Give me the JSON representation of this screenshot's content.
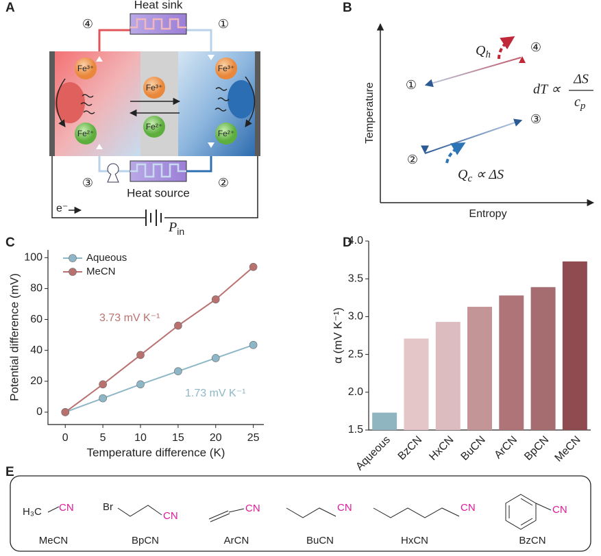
{
  "panel_labels": {
    "a": "A",
    "b": "B",
    "c": "C",
    "d": "D",
    "e": "E"
  },
  "panel_a": {
    "heat_sink": "Heat sink",
    "heat_source": "Heat source",
    "steps": [
      "①",
      "②",
      "③",
      "④"
    ],
    "fe3": "Fe³⁺",
    "fe2": "Fe²⁺",
    "electron": "e⁻",
    "power": {
      "symbol": "P",
      "subscript": "in"
    }
  },
  "panel_b": {
    "x_label": "Entropy",
    "y_label": "Temperature",
    "steps": [
      "①",
      "②",
      "③",
      "④"
    ],
    "q_hot": {
      "symbol": "Q",
      "subscript": "h"
    },
    "q_cold": {
      "symbol": "Q",
      "subscript": "c",
      "relation": "∝ ΔS"
    },
    "dT": {
      "lhs": "dT ∝",
      "numerator": "ΔS",
      "denominator": {
        "symbol": "c",
        "subscript": "p"
      }
    }
  },
  "chart_data": [
    {
      "type": "line",
      "x_label": "Temperature difference (K)",
      "y_label": "Potential difference (mV)",
      "x": [
        0,
        5,
        10,
        15,
        20,
        25
      ],
      "series": [
        {
          "name": "Aqueous",
          "color": "#8db7c6",
          "values": [
            0,
            9,
            18,
            26.5,
            35,
            43.5
          ]
        },
        {
          "name": "MeCN",
          "color": "#b8716e",
          "values": [
            0,
            18,
            37,
            56,
            73,
            94
          ]
        }
      ],
      "annotations": [
        "3.73 mV K⁻¹",
        "1.73 mV K⁻¹"
      ],
      "xlim": [
        -2.3,
        26.4
      ],
      "ylim": [
        -8,
        105
      ],
      "xticks": [
        0,
        5,
        10,
        15,
        20,
        25
      ],
      "yticks": [
        0,
        20,
        40,
        60,
        80,
        100
      ],
      "legend": "upper left"
    },
    {
      "type": "bar",
      "y_label": "α (mV K⁻¹)",
      "categories": [
        "Aqueous",
        "BzCN",
        "HxCN",
        "BuCN",
        "ArCN",
        "BpCN",
        "MeCN"
      ],
      "values": [
        1.73,
        2.71,
        2.93,
        3.13,
        3.28,
        3.39,
        3.73
      ],
      "colors": [
        "#8fb5c0",
        "#e4c6c8",
        "#dcbcbe",
        "#c39597",
        "#ae7477",
        "#a66d70",
        "#8f4b4f"
      ],
      "ylim": [
        1.5,
        4.0
      ],
      "yticks": [
        1.5,
        {
          "value": 2,
          "label": "2.0"
        },
        2.5,
        {
          "value": 3,
          "label": "3.0"
        },
        3.5,
        {
          "value": 4,
          "label": "4.0"
        }
      ]
    }
  ],
  "panel_e": {
    "molecules": [
      {
        "name": "MeCN",
        "labels": [
          "H₃C",
          "CN"
        ]
      },
      {
        "name": "BpCN",
        "labels": [
          "Br",
          "CN"
        ]
      },
      {
        "name": "ArCN",
        "labels": [
          "CN"
        ]
      },
      {
        "name": "BuCN",
        "labels": [
          "CN"
        ]
      },
      {
        "name": "HxCN",
        "labels": [
          "CN"
        ]
      },
      {
        "name": "BzCN",
        "labels": [
          "CN"
        ]
      }
    ]
  }
}
